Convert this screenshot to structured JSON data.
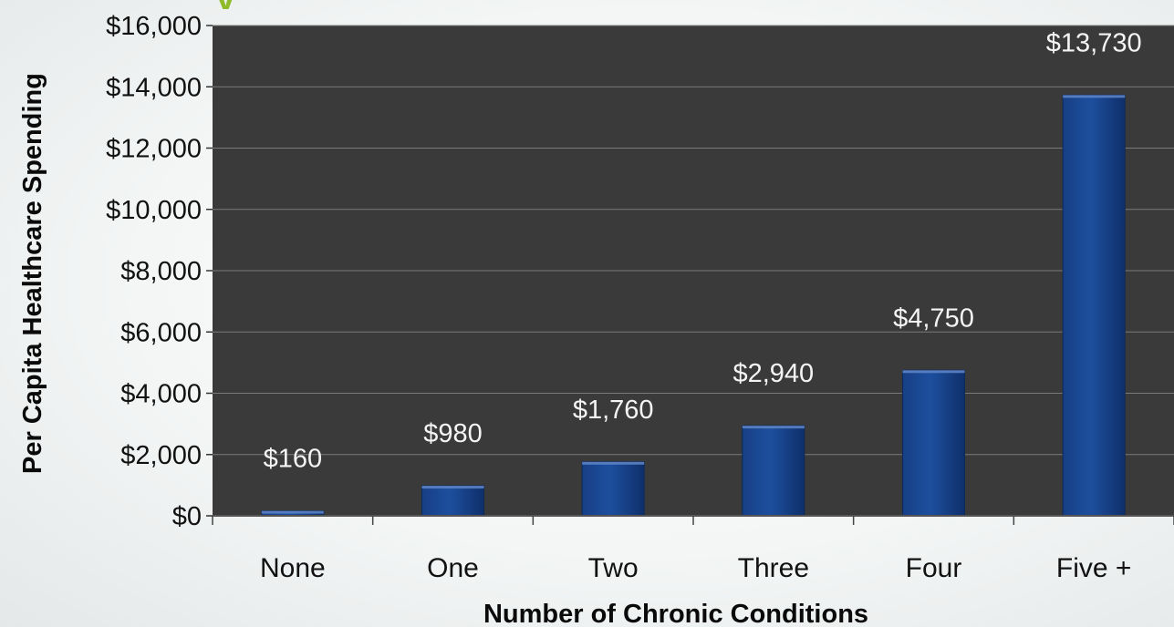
{
  "colors": {
    "plot_background": "#3a3a3a",
    "bar_fill": "#1d4f9e",
    "gridline": "#7a7a7a",
    "accent_title": "#8dbb2a"
  },
  "chart_data": {
    "type": "bar",
    "categories": [
      "None",
      "One",
      "Two",
      "Three",
      "Four",
      "Five +"
    ],
    "values": [
      160,
      980,
      1760,
      2940,
      4750,
      13730
    ],
    "data_labels": [
      "$160",
      "$980",
      "$1,760",
      "$2,940",
      "$4,750",
      "$13,730"
    ],
    "xlabel": "Number of Chronic Conditions",
    "ylabel": "Per Capita Healthcare Spending",
    "ylim": [
      0,
      16000
    ],
    "yticks": [
      0,
      2000,
      4000,
      6000,
      8000,
      10000,
      12000,
      14000,
      16000
    ],
    "ytick_labels": [
      "$0",
      "$2,000",
      "$4,000",
      "$6,000",
      "$8,000",
      "$10,000",
      "$12,000",
      "$14,000",
      "$16,000"
    ],
    "grid": true,
    "legend": "none"
  }
}
